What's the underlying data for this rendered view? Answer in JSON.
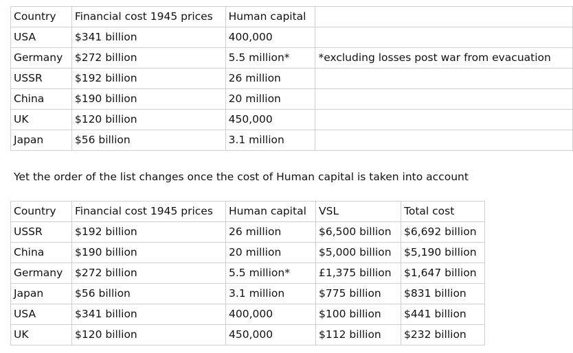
{
  "table_1": {
    "headers": [
      "Country",
      "Financial cost 1945 prices",
      "Human capital",
      ""
    ],
    "rows": [
      [
        "USA",
        "$341 billion",
        "400,000",
        ""
      ],
      [
        "Germany",
        "$272 billion",
        "5.5 million*",
        "*excluding losses post war from evacuation"
      ],
      [
        "USSR",
        "$192 billion",
        "26 million",
        ""
      ],
      [
        "China",
        "$190 billion",
        "20 million",
        ""
      ],
      [
        "UK",
        "$120 billion",
        "450,000",
        ""
      ],
      [
        "Japan",
        "$56 billion",
        "3.1 million",
        ""
      ]
    ]
  },
  "sentence": "Yet the order of the list changes once the cost of Human capital is taken into account",
  "table_2": {
    "headers": [
      "Country",
      "Financial cost 1945 prices",
      "Human capital",
      "VSL",
      "Total cost"
    ],
    "rows": [
      [
        "USSR",
        "$192 billion",
        "26 million",
        "$6,500 billion",
        "$6,692 billion"
      ],
      [
        "China",
        "$190 billion",
        "20 million",
        "$5,000 billion",
        "$5,190 billion"
      ],
      [
        "Germany",
        "$272 billion",
        "5.5 million*",
        "£1,375 billion",
        "$1,647 billion"
      ],
      [
        "Japan",
        "$56 billion",
        "3.1 million",
        "$775 billion",
        "$831 billion"
      ],
      [
        "USA",
        "$341 billion",
        "400,000",
        "$100 billion",
        "$441 billion"
      ],
      [
        "UK",
        "$120 billion",
        "450,000",
        "$112 billion",
        "$232 billion"
      ]
    ]
  }
}
